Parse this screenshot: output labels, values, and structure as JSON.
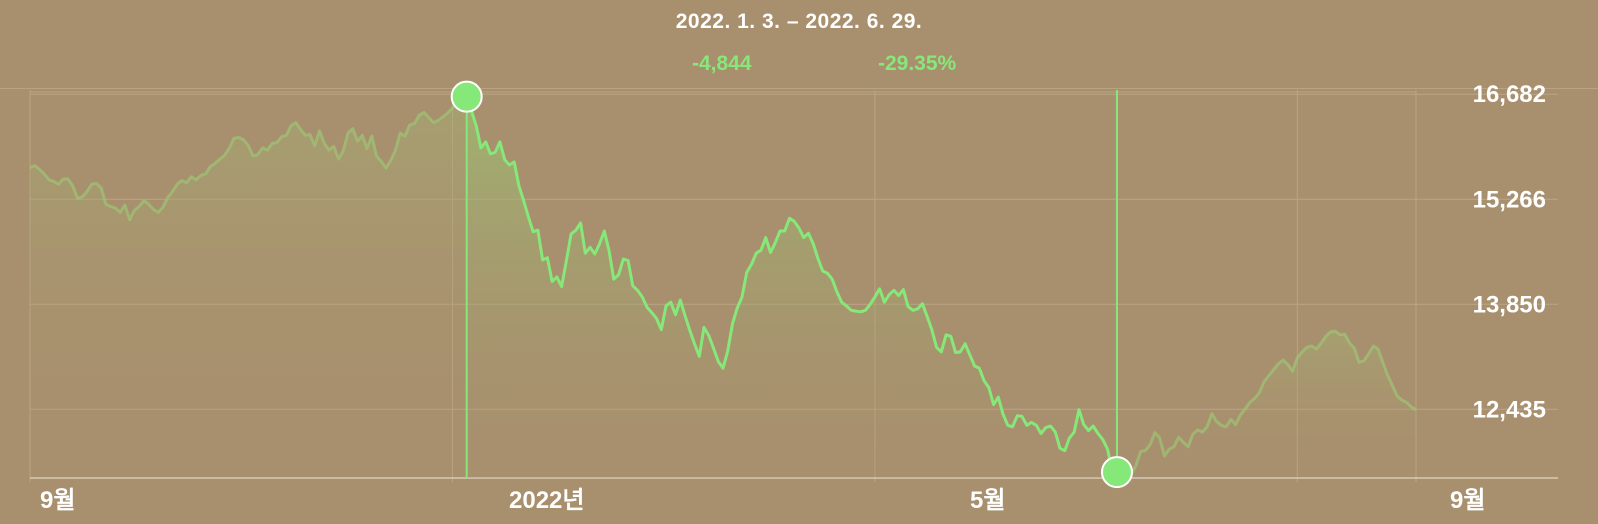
{
  "header": {
    "range": "2022. 1. 3. – 2022. 6. 29.",
    "change_abs": "-4,844",
    "change_pct": "-29.35%"
  },
  "colors": {
    "background": "#a88f6e",
    "line": "#86e879",
    "marker": "#86e879",
    "grid": "#baa583"
  },
  "chart_data": {
    "type": "line",
    "x_tick_labels": [
      "9월",
      "2022년",
      "5월",
      "9월"
    ],
    "y_tick_labels": [
      "16,682",
      "15,266",
      "13,850",
      "12,435"
    ],
    "y_ticks": [
      16682,
      15266,
      13850,
      12435
    ],
    "ylim": [
      11940,
      17170
    ],
    "grid": true,
    "highlight": {
      "start": "2022. 1. 3.",
      "end": "2022. 6. 29.",
      "start_value": 17080,
      "end_value": 12236
    },
    "series": [
      {
        "values": [
          16125,
          16150,
          16100,
          16040,
          15960,
          15940,
          15900,
          15970,
          15970,
          15880,
          15710,
          15730,
          15800,
          15900,
          15910,
          15850,
          15630,
          15600,
          15580,
          15520,
          15620,
          15420,
          15550,
          15600,
          15680,
          15630,
          15560,
          15520,
          15590,
          15720,
          15800,
          15900,
          15950,
          15920,
          16000,
          15960,
          16020,
          16040,
          16140,
          16180,
          16240,
          16290,
          16390,
          16520,
          16530,
          16500,
          16420,
          16280,
          16300,
          16390,
          16360,
          16450,
          16460,
          16540,
          16560,
          16690,
          16730,
          16640,
          16560,
          16570,
          16420,
          16620,
          16450,
          16360,
          16410,
          16240,
          16350,
          16590,
          16650,
          16480,
          16560,
          16380,
          16550,
          16280,
          16210,
          16120,
          16220,
          16360,
          16590,
          16550,
          16700,
          16720,
          16830,
          16870,
          16800,
          16730,
          16760,
          16810,
          16860,
          16930,
          16980,
          17020,
          17080,
          16890,
          16690,
          16390,
          16470,
          16310,
          16330,
          16470,
          16230,
          16160,
          16200,
          15880,
          15680,
          15460,
          15260,
          15280,
          14880,
          14910,
          14590,
          14650,
          14520,
          14870,
          15230,
          15280,
          15380,
          14970,
          15050,
          14960,
          15100,
          15270,
          15000,
          14620,
          14680,
          14890,
          14870,
          14530,
          14470,
          14380,
          14240,
          14170,
          14090,
          13940,
          14260,
          14310,
          14140,
          14340,
          14130,
          13930,
          13750,
          13580,
          13970,
          13860,
          13690,
          13510,
          13420,
          13650,
          14020,
          14230,
          14380,
          14710,
          14820,
          14970,
          15010,
          15180,
          14980,
          15110,
          15270,
          15270,
          15440,
          15400,
          15310,
          15180,
          15240,
          15100,
          14900,
          14730,
          14700,
          14620,
          14450,
          14310,
          14260,
          14200,
          14190,
          14180,
          14200,
          14280,
          14380,
          14490,
          14310,
          14410,
          14470,
          14400,
          14480,
          14250,
          14200,
          14220,
          14290,
          14120,
          13940,
          13700,
          13640,
          13870,
          13850,
          13630,
          13640,
          13750,
          13600,
          13450,
          13420,
          13250,
          13160,
          12930,
          13030,
          12800,
          12650,
          12630,
          12780,
          12770,
          12650,
          12690,
          12650,
          12540,
          12620,
          12640,
          12560,
          12340,
          12310,
          12480,
          12560,
          12860,
          12660,
          12580,
          12640,
          12540,
          12460,
          12330,
          12040,
          12020,
          12140,
          12060,
          11990,
          12110,
          12300,
          12310,
          12390,
          12550,
          12480,
          12236,
          12330,
          12360,
          12490,
          12420,
          12360,
          12530,
          12590,
          12560,
          12630,
          12810,
          12700,
          12650,
          12630,
          12730,
          12660,
          12790,
          12870,
          12960,
          13010,
          13090,
          13240,
          13320,
          13400,
          13480,
          13530,
          13470,
          13380,
          13560,
          13640,
          13700,
          13720,
          13680,
          13760,
          13850,
          13910,
          13920,
          13870,
          13880,
          13760,
          13690,
          13500,
          13520,
          13610,
          13720,
          13680,
          13500,
          13330,
          13190,
          13050,
          12990,
          12960,
          12900,
          12860
        ]
      }
    ]
  }
}
